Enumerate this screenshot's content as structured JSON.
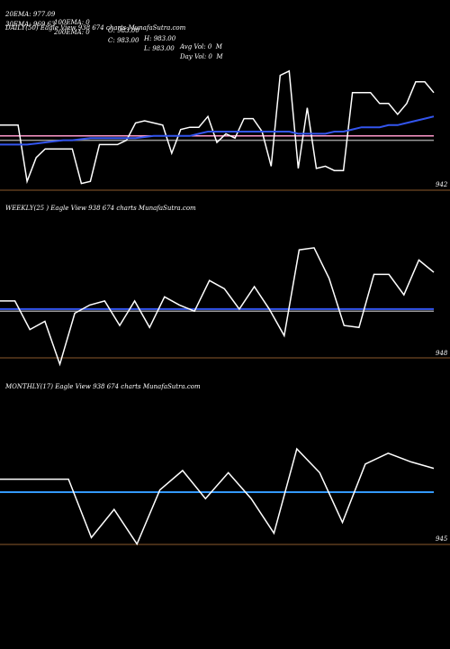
{
  "header": {
    "row1": [
      {
        "name": "ema20-label",
        "text": "20EMA: 977.09"
      },
      {
        "name": "ema100-label",
        "text": "100EMA: 0"
      },
      {
        "name": "open-label",
        "text": "O: 983.00"
      },
      {
        "name": "high-label",
        "text": "H: 983.00"
      },
      {
        "name": "avg-vol-label",
        "text": "Avg Vol: 0  M"
      }
    ],
    "row2": [
      {
        "name": "ema30-label",
        "text": "30EMA: 969.63"
      },
      {
        "name": "ema200-label",
        "text": "200EMA: 0"
      },
      {
        "name": "close-label",
        "text": "C: 983.00"
      },
      {
        "name": "low-label",
        "text": "L: 983.00"
      },
      {
        "name": "day-vol-label",
        "text": "Day Vol: 0  M"
      }
    ]
  },
  "chart_data": [
    {
      "type": "line",
      "panel": "daily",
      "title": "DAILY(50) Eagle  View  938               674  charts MunafaSutra.com",
      "price_label": "942",
      "colors": {
        "price": "#ffffff",
        "ema_blue": "#3355ee",
        "line_pink": "#ff99cc",
        "line_gray": "#999999",
        "baseline": "#8b5a2b"
      },
      "series": [
        {
          "name": "price",
          "color": "#ffffff",
          "values": [
            968,
            968,
            968,
            942,
            953,
            957,
            957,
            957,
            957,
            941,
            942,
            959,
            959,
            959,
            961,
            969,
            970,
            969,
            968,
            955,
            966,
            967,
            967,
            972,
            960,
            964,
            962,
            971,
            971,
            965,
            949,
            991,
            993,
            948,
            976,
            948,
            949,
            947,
            947,
            983,
            983,
            983,
            978,
            978,
            973,
            978,
            988,
            988,
            983
          ]
        },
        {
          "name": "ema_blue",
          "color": "#3355ee",
          "values": [
            959,
            959,
            959,
            959,
            959.5,
            960,
            960.5,
            961,
            961,
            961.5,
            962,
            962,
            962,
            962,
            962,
            962,
            962.5,
            963,
            963,
            963,
            963,
            963,
            964,
            965,
            965,
            965,
            965,
            965,
            965,
            965,
            965,
            965,
            965,
            964,
            964,
            964,
            964,
            965,
            965,
            966,
            967,
            967,
            967,
            968,
            968,
            969,
            970,
            971,
            972
          ]
        },
        {
          "name": "line_pink",
          "color": "#ff99cc",
          "values": [
            963,
            963
          ]
        },
        {
          "name": "line_gray",
          "color": "#999999",
          "values": [
            961,
            961
          ]
        }
      ],
      "ylim": [
        930,
        1005
      ]
    },
    {
      "type": "line",
      "panel": "weekly",
      "title": "WEEKLY(25                   ) Eagle  View  938               674  charts MunafaSutra.com",
      "price_label": "948",
      "colors": {
        "price": "#ffffff",
        "ema_blue": "#3355ee",
        "line_gray": "#999999",
        "baseline": "#8b5a2b"
      },
      "series": [
        {
          "name": "price",
          "color": "#ffffff",
          "values": [
            968,
            968,
            954,
            958,
            937,
            962,
            966,
            968,
            956,
            968,
            955,
            970,
            966,
            963,
            978,
            974,
            964,
            975,
            964,
            951,
            993,
            994,
            979,
            956,
            955,
            981,
            981,
            971,
            988,
            982
          ]
        },
        {
          "name": "ema_blue",
          "color": "#3355ee",
          "values": [
            964,
            964
          ]
        },
        {
          "name": "line_gray",
          "color": "#999999",
          "values": [
            963,
            963
          ]
        }
      ],
      "ylim": [
        930,
        1005
      ]
    },
    {
      "type": "line",
      "panel": "monthly",
      "title": "MONTHLY(17) Eagle  View  938               674  charts MunafaSutra.com",
      "price_label": "945",
      "colors": {
        "price": "#ffffff",
        "ema_blue": "#3399ff",
        "baseline": "#8b5a2b"
      },
      "series": [
        {
          "name": "price",
          "color": "#ffffff",
          "values": [
            971,
            971,
            971,
            971,
            944,
            957,
            941,
            966,
            975,
            962,
            974,
            962,
            946,
            985,
            974,
            951,
            978,
            983,
            979,
            976
          ]
        },
        {
          "name": "ema_blue",
          "color": "#3399ff",
          "values": [
            965,
            965
          ]
        }
      ],
      "ylim": [
        930,
        1005
      ]
    }
  ]
}
